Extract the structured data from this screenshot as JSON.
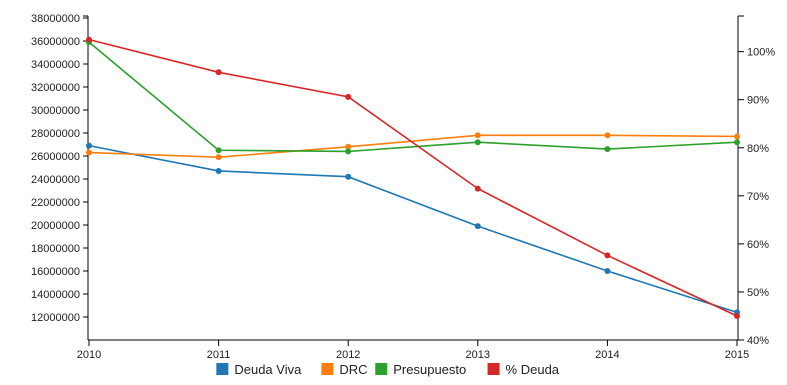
{
  "chart_data": {
    "type": "line",
    "categories": [
      "2010",
      "2011",
      "2012",
      "2013",
      "2014",
      "2015"
    ],
    "left_axis": {
      "ylim": [
        10000000,
        38000000
      ],
      "ticks": [
        12000000,
        14000000,
        16000000,
        18000000,
        20000000,
        22000000,
        24000000,
        26000000,
        28000000,
        30000000,
        32000000,
        34000000,
        36000000,
        38000000
      ],
      "tick_labels": [
        "12000000",
        "14000000",
        "16000000",
        "18000000",
        "20000000",
        "22000000",
        "24000000",
        "26000000",
        "28000000",
        "30000000",
        "32000000",
        "34000000",
        "36000000",
        "38000000"
      ]
    },
    "right_axis": {
      "ylim": [
        40,
        107
      ],
      "ticks": [
        40,
        50,
        60,
        70,
        80,
        90,
        100
      ],
      "tick_labels": [
        "40%",
        "50%",
        "60%",
        "70%",
        "80%",
        "90%",
        "100%"
      ]
    },
    "series": [
      {
        "name": "Deuda Viva",
        "axis": "left",
        "color": "#1f77b4",
        "values": [
          26900000,
          24700000,
          24200000,
          19900000,
          16000000,
          12400000
        ]
      },
      {
        "name": "DRC",
        "axis": "left",
        "color": "#ff7f0e",
        "values": [
          26300000,
          25900000,
          26800000,
          27800000,
          27800000,
          27700000
        ]
      },
      {
        "name": "Presupuesto",
        "axis": "left",
        "color": "#2ca02c",
        "values": [
          35900000,
          26500000,
          26400000,
          27200000,
          26600000,
          27200000
        ]
      },
      {
        "name": "% Deuda",
        "axis": "right",
        "color": "#d62728",
        "values": [
          102.5,
          95.7,
          90.6,
          71.5,
          57.6,
          45.0
        ]
      }
    ],
    "grid": false,
    "legend_position": "bottom"
  }
}
